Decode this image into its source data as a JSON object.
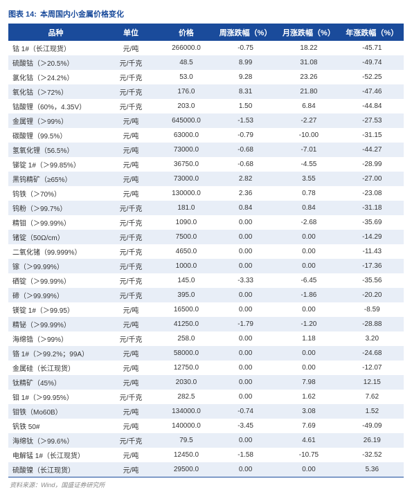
{
  "title_prefix": "图表 14:",
  "title_text": "本周国内小金属价格变化",
  "source": "资料来源：Wind，国盛证券研究所",
  "columns": [
    "品种",
    "单位",
    "价格",
    "周涨跌幅（%）",
    "月涨跌幅（%）",
    "年涨跌幅（%）"
  ],
  "rows": [
    [
      "钴 1#（长江现货）",
      "元/吨",
      "266000.0",
      "-0.75",
      "18.22",
      "-45.71"
    ],
    [
      "硫酸钴（＞20.5%）",
      "元/千克",
      "48.5",
      "8.99",
      "31.08",
      "-49.74"
    ],
    [
      "氯化钴（＞24.2%）",
      "元/千克",
      "53.0",
      "9.28",
      "23.26",
      "-52.25"
    ],
    [
      "氧化钴（＞72%）",
      "元/千克",
      "176.0",
      "8.31",
      "21.80",
      "-47.46"
    ],
    [
      "钴酸锂（60%，4.35V）",
      "元/千克",
      "203.0",
      "1.50",
      "6.84",
      "-44.84"
    ],
    [
      "金属锂（＞99%）",
      "元/吨",
      "645000.0",
      "-1.53",
      "-2.27",
      "-27.53"
    ],
    [
      "碳酸锂（99.5%）",
      "元/吨",
      "63000.0",
      "-0.79",
      "-10.00",
      "-31.15"
    ],
    [
      "氢氧化锂（56.5%）",
      "元/吨",
      "73000.0",
      "-0.68",
      "-7.01",
      "-44.27"
    ],
    [
      "锑锭 1#（＞99.85%）",
      "元/吨",
      "36750.0",
      "-0.68",
      "-4.55",
      "-28.99"
    ],
    [
      "黑钨精矿（≥65%）",
      "元/吨",
      "73000.0",
      "2.82",
      "3.55",
      "-27.00"
    ],
    [
      "钨铁（＞70%）",
      "元/吨",
      "130000.0",
      "2.36",
      "0.78",
      "-23.08"
    ],
    [
      "钨粉（＞99.7%）",
      "元/千克",
      "181.0",
      "0.84",
      "0.84",
      "-31.18"
    ],
    [
      "精钼（＞99.99%）",
      "元/千克",
      "1090.0",
      "0.00",
      "-2.68",
      "-35.69"
    ],
    [
      "锗锭（50Ω/cm）",
      "元/千克",
      "7500.0",
      "0.00",
      "0.00",
      "-14.29"
    ],
    [
      "二氧化锗（99.999%）",
      "元/千克",
      "4650.0",
      "0.00",
      "0.00",
      "-11.43"
    ],
    [
      "镓（＞99.99%）",
      "元/千克",
      "1000.0",
      "0.00",
      "0.00",
      "-17.36"
    ],
    [
      "硒锭（＞99.99%）",
      "元/千克",
      "145.0",
      "-3.33",
      "-6.45",
      "-35.56"
    ],
    [
      "碲（＞99.99%）",
      "元/千克",
      "395.0",
      "0.00",
      "-1.86",
      "-20.20"
    ],
    [
      "镁锭 1#（＞99.95）",
      "元/吨",
      "16500.0",
      "0.00",
      "0.00",
      "-8.59"
    ],
    [
      "精铋（＞99.99%）",
      "元/吨",
      "41250.0",
      "-1.79",
      "-1.20",
      "-28.88"
    ],
    [
      "海绵锆（＞99%）",
      "元/千克",
      "258.0",
      "0.00",
      "1.18",
      "3.20"
    ],
    [
      "铬 1#（＞99.2%；99A）",
      "元/吨",
      "58000.0",
      "0.00",
      "0.00",
      "-24.68"
    ],
    [
      "金属硅（长江现货）",
      "元/吨",
      "12750.0",
      "0.00",
      "0.00",
      "-12.07"
    ],
    [
      "钛精矿（45%）",
      "元/吨",
      "2030.0",
      "0.00",
      "7.98",
      "12.15"
    ],
    [
      "钼 1#（＞99.95%）",
      "元/千克",
      "282.5",
      "0.00",
      "1.62",
      "7.62"
    ],
    [
      "钼铁（Mo60B）",
      "元/吨",
      "134000.0",
      "-0.74",
      "3.08",
      "1.52"
    ],
    [
      "钒铁 50#",
      "元/吨",
      "140000.0",
      "-3.45",
      "7.69",
      "-49.09"
    ],
    [
      "海绵钛（＞99.6%）",
      "元/千克",
      "79.5",
      "0.00",
      "4.61",
      "26.19"
    ],
    [
      "电解锰 1#（长江现货）",
      "元/吨",
      "12450.0",
      "-1.58",
      "-10.75",
      "-32.52"
    ],
    [
      "硫酸镍（长江现货）",
      "元/吨",
      "29500.0",
      "0.00",
      "0.00",
      "5.36"
    ]
  ]
}
